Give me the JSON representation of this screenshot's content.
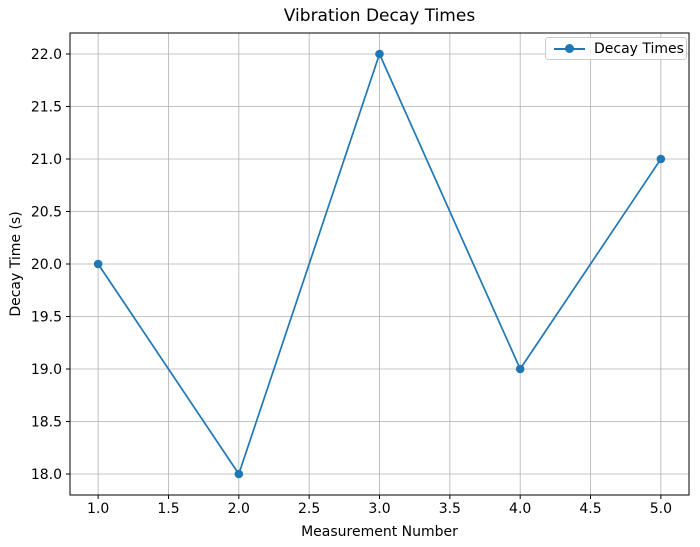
{
  "chart_data": {
    "type": "line",
    "title": "Vibration Decay Times",
    "xlabel": "Measurement Number",
    "ylabel": "Decay Time (s)",
    "x": [
      1,
      2,
      3,
      4,
      5
    ],
    "series": [
      {
        "name": "Decay Times",
        "values": [
          20,
          18,
          22,
          19,
          21
        ]
      }
    ],
    "xlim": [
      0.8,
      5.2
    ],
    "ylim": [
      17.8,
      22.2
    ],
    "xticks": [
      1.0,
      1.5,
      2.0,
      2.5,
      3.0,
      3.5,
      4.0,
      4.5,
      5.0
    ],
    "xtick_labels": [
      "1.0",
      "1.5",
      "2.0",
      "2.5",
      "3.0",
      "3.5",
      "4.0",
      "4.5",
      "5.0"
    ],
    "yticks": [
      18.0,
      18.5,
      19.0,
      19.5,
      20.0,
      20.5,
      21.0,
      21.5,
      22.0
    ],
    "ytick_labels": [
      "18.0",
      "18.5",
      "19.0",
      "19.5",
      "20.0",
      "20.5",
      "21.0",
      "21.5",
      "22.0"
    ],
    "grid": true,
    "legend_position": "upper right",
    "legend_entries": [
      "Decay Times"
    ],
    "colors": {
      "line": "#1f77b4",
      "marker": "#1f77b4",
      "grid": "#b0b0b0",
      "spine": "#000000",
      "text": "#000000",
      "background": "#ffffff",
      "legend_border": "#cccccc"
    }
  }
}
